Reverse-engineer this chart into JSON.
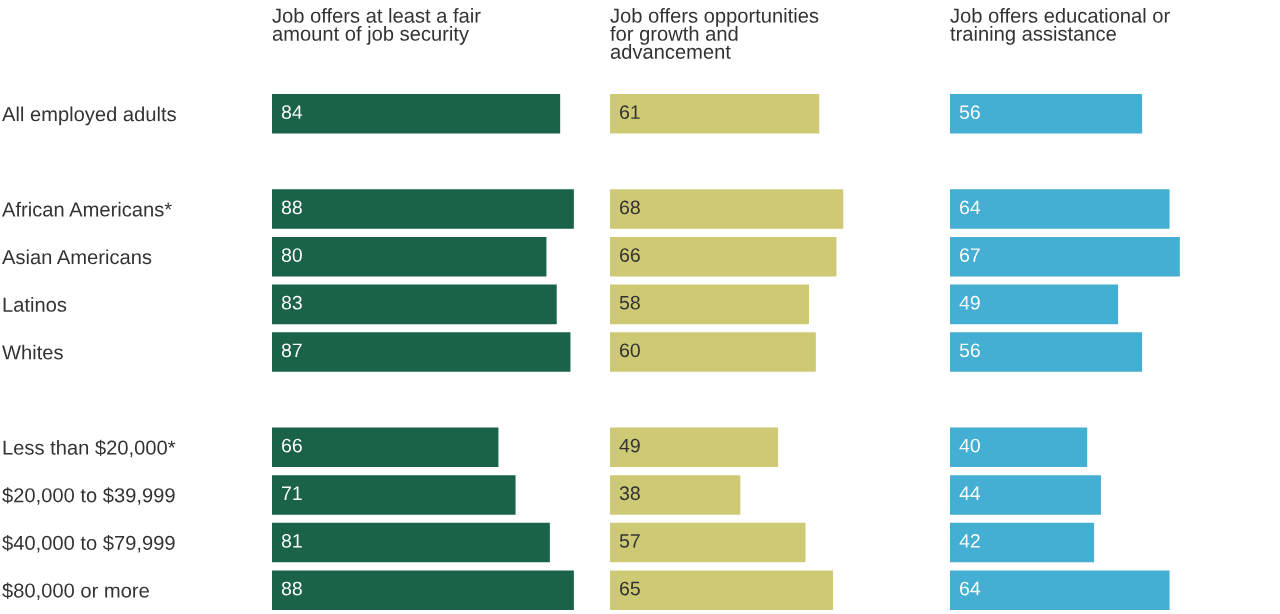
{
  "chart_data": [
    {
      "type": "bar",
      "orientation": "horizontal",
      "title": "Job offers at least a fair\namount of job security",
      "categories": [
        "All employed adults",
        null,
        "African Americans*",
        "Asian Americans",
        "Latinos",
        "Whites",
        null,
        "Less than $20,000*",
        "$20,000 to $39,999",
        "$40,000 to $79,999",
        "$80,000 or more"
      ],
      "values": [
        84,
        null,
        88,
        80,
        83,
        87,
        null,
        66,
        71,
        81,
        88
      ],
      "color": "#1a6349",
      "data_labels": true,
      "tick_labels": "y",
      "grid": false,
      "legend": false
    },
    {
      "type": "bar",
      "orientation": "horizontal",
      "title": "Job offers opportunities\nfor growth and\nadvancement",
      "values": [
        61,
        null,
        68,
        66,
        58,
        60,
        null,
        49,
        38,
        57,
        65
      ],
      "color": "#cdc974",
      "data_labels": true,
      "tick_labels": false,
      "grid": false,
      "legend": false
    },
    {
      "type": "bar",
      "orientation": "horizontal",
      "title": "Job offers educational or\ntraining assistance",
      "values": [
        56,
        null,
        64,
        67,
        49,
        56,
        null,
        40,
        44,
        42,
        64
      ],
      "color": "#45aed3",
      "data_labels": true,
      "tick_labels": false,
      "grid": false,
      "legend": false
    }
  ]
}
